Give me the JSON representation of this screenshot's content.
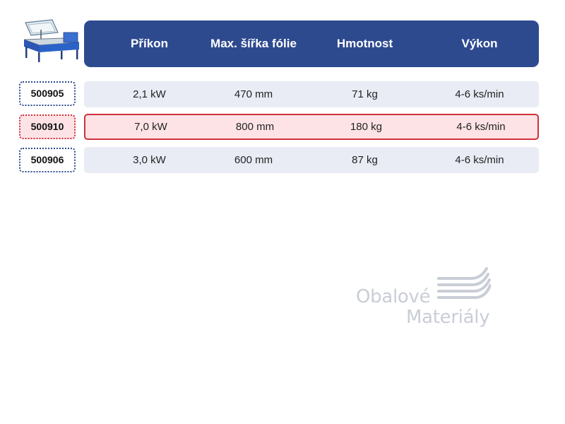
{
  "header": {
    "columns": [
      "Příkon",
      "Max. šířka fólie",
      "Hmotnost",
      "Výkon"
    ]
  },
  "rows": [
    {
      "code": "500905",
      "power": "2,1 kW",
      "max_width": "470 mm",
      "weight": "71 kg",
      "output": "4-6 ks/min",
      "highlighted": false
    },
    {
      "code": "500910",
      "power": "7,0 kW",
      "max_width": "800 mm",
      "weight": "180 kg",
      "output": "4-6 ks/min",
      "highlighted": true
    },
    {
      "code": "500906",
      "power": "3,0 kW",
      "max_width": "600 mm",
      "weight": "87 kg",
      "output": "4-6 ks/min",
      "highlighted": false
    }
  ],
  "logo": {
    "line1": "Obalové",
    "line2": "Materiály"
  },
  "colors": {
    "header_bg": "#2e4a8f",
    "row_bg": "#e9ecf5",
    "highlight_border": "#d0303a",
    "highlight_bg": "#fde3e6",
    "logo_gray": "#c9cdd6"
  },
  "icons": {
    "product": "shrink-wrap-machine-image",
    "logo": "stripes-logo-icon"
  }
}
